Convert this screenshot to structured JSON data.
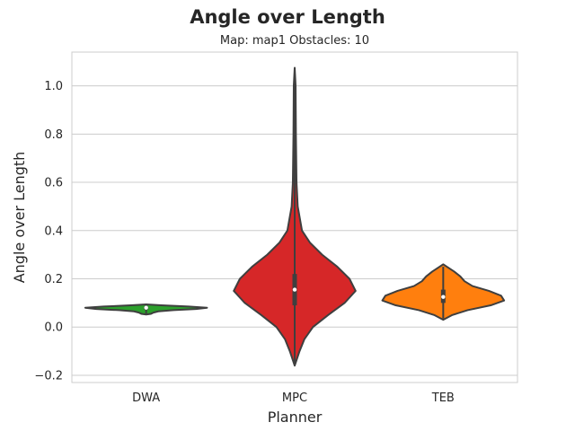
{
  "chart_data": {
    "type": "violin",
    "title": "Angle over Length",
    "subtitle": "Map: map1 Obstacles: 10",
    "xlabel": "Planner",
    "ylabel": "Angle over Length",
    "ylim": [
      -0.23,
      1.14
    ],
    "yticks": [
      -0.2,
      0.0,
      0.2,
      0.4,
      0.6,
      0.8,
      1.0
    ],
    "ytick_labels": [
      "−0.2",
      "0.0",
      "0.2",
      "0.4",
      "0.6",
      "0.8",
      "1.0"
    ],
    "grid": "horizontal",
    "categories": [
      "DWA",
      "MPC",
      "TEB"
    ],
    "series": [
      {
        "category": "DWA",
        "color": "#2ca02c",
        "min": 0.055,
        "max": 0.09,
        "q1": 0.073,
        "median": 0.08,
        "q3": 0.085,
        "density": [
          [
            0.052,
            0.0
          ],
          [
            0.055,
            0.08
          ],
          [
            0.06,
            0.12
          ],
          [
            0.065,
            0.2
          ],
          [
            0.07,
            0.45
          ],
          [
            0.075,
            0.82
          ],
          [
            0.08,
            1.0
          ],
          [
            0.085,
            0.7
          ],
          [
            0.09,
            0.25
          ],
          [
            0.094,
            0.0
          ]
        ]
      },
      {
        "category": "MPC",
        "color": "#d62728",
        "min": -0.16,
        "max": 1.075,
        "q1": 0.09,
        "median": 0.155,
        "q3": 0.22,
        "density": [
          [
            -0.16,
            0.0
          ],
          [
            -0.1,
            0.08
          ],
          [
            -0.05,
            0.16
          ],
          [
            0.0,
            0.3
          ],
          [
            0.05,
            0.55
          ],
          [
            0.1,
            0.82
          ],
          [
            0.15,
            1.0
          ],
          [
            0.2,
            0.9
          ],
          [
            0.25,
            0.7
          ],
          [
            0.3,
            0.45
          ],
          [
            0.35,
            0.25
          ],
          [
            0.4,
            0.12
          ],
          [
            0.5,
            0.05
          ],
          [
            0.6,
            0.03
          ],
          [
            0.8,
            0.02
          ],
          [
            1.0,
            0.015
          ],
          [
            1.075,
            0.0
          ]
        ]
      },
      {
        "category": "TEB",
        "color": "#ff7f0e",
        "min": 0.035,
        "max": 0.25,
        "q1": 0.1,
        "median": 0.125,
        "q3": 0.155,
        "density": [
          [
            0.03,
            0.0
          ],
          [
            0.05,
            0.15
          ],
          [
            0.07,
            0.4
          ],
          [
            0.09,
            0.78
          ],
          [
            0.11,
            1.0
          ],
          [
            0.13,
            0.95
          ],
          [
            0.15,
            0.75
          ],
          [
            0.17,
            0.48
          ],
          [
            0.19,
            0.35
          ],
          [
            0.21,
            0.28
          ],
          [
            0.23,
            0.18
          ],
          [
            0.25,
            0.06
          ],
          [
            0.26,
            0.0
          ]
        ]
      }
    ]
  }
}
